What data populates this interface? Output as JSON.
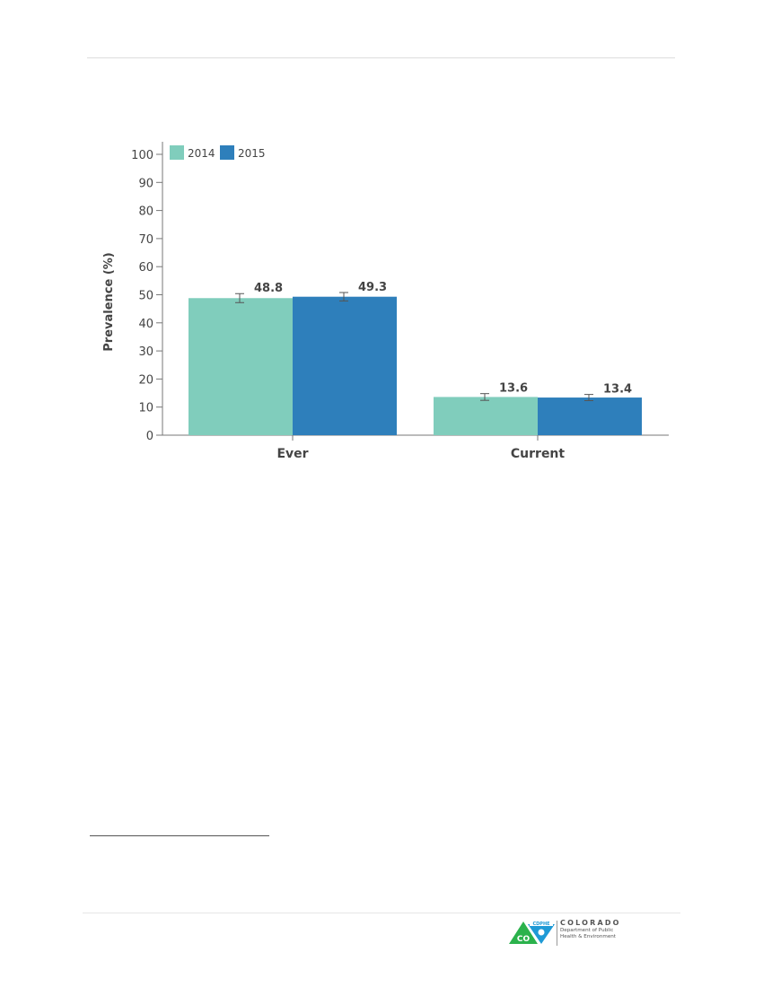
{
  "chart_data": {
    "type": "bar",
    "categories": [
      "Ever",
      "Current"
    ],
    "series": [
      {
        "name": "2014",
        "color": "#80cdbc",
        "values": [
          48.8,
          13.6
        ],
        "error_low": [
          47.2,
          12.4
        ],
        "error_high": [
          50.4,
          14.8
        ]
      },
      {
        "name": "2015",
        "color": "#2e7fbb",
        "values": [
          49.3,
          13.4
        ],
        "error_low": [
          47.8,
          12.3
        ],
        "error_high": [
          50.8,
          14.5
        ]
      }
    ],
    "data_labels": [
      "48.8",
      "13.6",
      "49.3",
      "13.4"
    ],
    "ylabel": "Prevalence (%)",
    "xlabel": "",
    "ylim": [
      0,
      100
    ],
    "yticks": [
      0,
      10,
      20,
      30,
      40,
      50,
      60,
      70,
      80,
      90,
      100
    ],
    "grid": false,
    "legend_position": "top-left",
    "error_bars": true
  },
  "footer": {
    "logo_badge": "CDPHE",
    "logo_state": "CO",
    "logo_name": "COLORADO",
    "logo_sub_1": "Department of Public",
    "logo_sub_2": "Health & Environment"
  }
}
